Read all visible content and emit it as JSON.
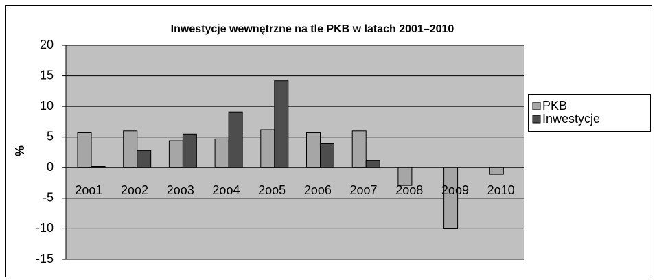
{
  "chart_data": {
    "type": "bar",
    "title": "Inwestycje wewnętrzne na tle PKB w latach 2001–2010",
    "y_label": "%",
    "categories": [
      "2oo1",
      "2oo2",
      "2oo3",
      "2oo4",
      "2oo5",
      "2oo6",
      "2oo7",
      "2oo8",
      "2oo9",
      "2o10"
    ],
    "series": [
      {
        "name": "PKB",
        "color": "#a6a6a6",
        "values": [
          5.7,
          6.0,
          4.4,
          4.7,
          6.2,
          5.7,
          6.0,
          -2.9,
          -9.9,
          -1.1
        ]
      },
      {
        "name": "Inwestycje",
        "color": "#4d4d4d",
        "values": [
          0.2,
          2.8,
          5.5,
          9.1,
          14.2,
          3.9,
          1.2,
          null,
          null,
          null
        ]
      }
    ],
    "ylim": [
      -15,
      20
    ],
    "yticks": [
      -15,
      -10,
      -5,
      0,
      5,
      10,
      15,
      20
    ],
    "grid": true,
    "legend": "right"
  }
}
